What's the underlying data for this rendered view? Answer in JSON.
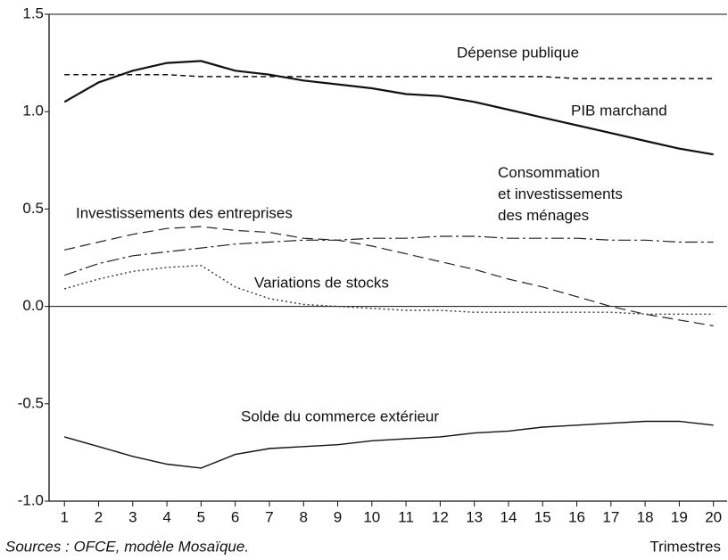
{
  "chart_data": {
    "type": "line",
    "x": [
      1,
      2,
      3,
      4,
      5,
      6,
      7,
      8,
      9,
      10,
      11,
      12,
      13,
      14,
      15,
      16,
      17,
      18,
      19,
      20
    ],
    "xlim": [
      0.55,
      20.4
    ],
    "xticks": [
      1,
      2,
      3,
      4,
      5,
      6,
      7,
      8,
      9,
      10,
      11,
      12,
      13,
      14,
      15,
      16,
      17,
      18,
      19,
      20
    ],
    "ylim": [
      -1.0,
      1.5
    ],
    "yticks": [
      {
        "value": -1.0,
        "label": "-1.0"
      },
      -0.5,
      {
        "value": 0.0,
        "label": "0.0"
      },
      0.5,
      {
        "value": 1.0,
        "label": "1.0"
      },
      1.5
    ],
    "x_label": "Trimestres",
    "source": "Sources : OFCE, modèle Mosaïque.",
    "series": [
      {
        "name": "Dépense publique",
        "color": "#111111",
        "style": "dashed",
        "values": [
          1.19,
          1.19,
          1.19,
          1.19,
          1.18,
          1.18,
          1.18,
          1.18,
          1.18,
          1.18,
          1.18,
          1.18,
          1.18,
          1.18,
          1.18,
          1.17,
          1.17,
          1.17,
          1.17,
          1.17
        ]
      },
      {
        "name": "PIB marchand",
        "color": "#111111",
        "style": "solid-thick",
        "values": [
          1.05,
          1.15,
          1.21,
          1.25,
          1.26,
          1.21,
          1.19,
          1.16,
          1.14,
          1.12,
          1.09,
          1.08,
          1.05,
          1.01,
          0.97,
          0.93,
          0.89,
          0.85,
          0.81,
          0.78
        ]
      },
      {
        "name": "Consommation\net investissements\ndes ménages",
        "color": "#222222",
        "style": "dash-dot",
        "values": [
          0.16,
          0.22,
          0.26,
          0.28,
          0.3,
          0.32,
          0.33,
          0.34,
          0.34,
          0.35,
          0.35,
          0.36,
          0.36,
          0.35,
          0.35,
          0.35,
          0.34,
          0.34,
          0.33,
          0.33
        ]
      },
      {
        "name": "Investissements des entreprises",
        "color": "#222222",
        "style": "long-dash",
        "values": [
          0.29,
          0.33,
          0.37,
          0.4,
          0.41,
          0.39,
          0.38,
          0.35,
          0.34,
          0.31,
          0.27,
          0.23,
          0.19,
          0.14,
          0.1,
          0.05,
          0.0,
          -0.04,
          -0.07,
          -0.1
        ]
      },
      {
        "name": "Variations de stocks",
        "color": "#333333",
        "style": "dotted",
        "values": [
          0.09,
          0.14,
          0.18,
          0.2,
          0.21,
          0.1,
          0.04,
          0.01,
          0.0,
          -0.01,
          -0.02,
          -0.02,
          -0.03,
          -0.03,
          -0.03,
          -0.03,
          -0.03,
          -0.04,
          -0.04,
          -0.04
        ]
      },
      {
        "name": "Solde du commerce extérieur",
        "color": "#111111",
        "style": "solid",
        "values": [
          -0.67,
          -0.72,
          -0.77,
          -0.81,
          -0.83,
          -0.76,
          -0.73,
          -0.72,
          -0.71,
          -0.69,
          -0.68,
          -0.67,
          -0.65,
          -0.64,
          -0.62,
          -0.61,
          -0.6,
          -0.59,
          -0.59,
          -0.61
        ]
      }
    ]
  }
}
